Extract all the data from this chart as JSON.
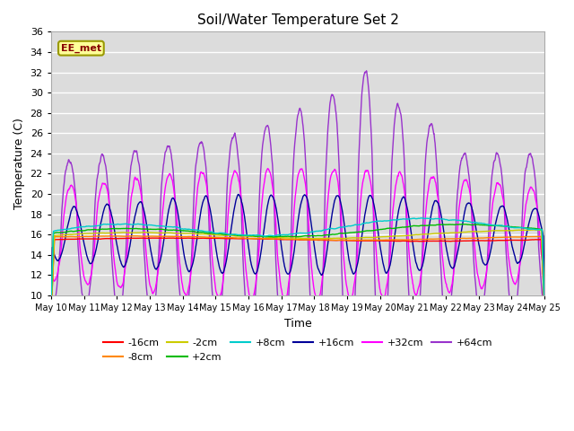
{
  "title": "Soil/Water Temperature Set 2",
  "xlabel": "Time",
  "ylabel": "Temperature (C)",
  "ylim": [
    10,
    36
  ],
  "yticks": [
    10,
    12,
    14,
    16,
    18,
    20,
    22,
    24,
    26,
    28,
    30,
    32,
    34,
    36
  ],
  "series_colors": {
    "-16cm": "#FF0000",
    "-8cm": "#FF8800",
    "-2cm": "#CCCC00",
    "+2cm": "#00BB00",
    "+8cm": "#00CCCC",
    "+16cm": "#000099",
    "+32cm": "#FF00FF",
    "+64cm": "#9933CC"
  },
  "annotation_text": "EE_met",
  "plot_bg": "#DCDCDC",
  "fig_bg": "#FFFFFF"
}
